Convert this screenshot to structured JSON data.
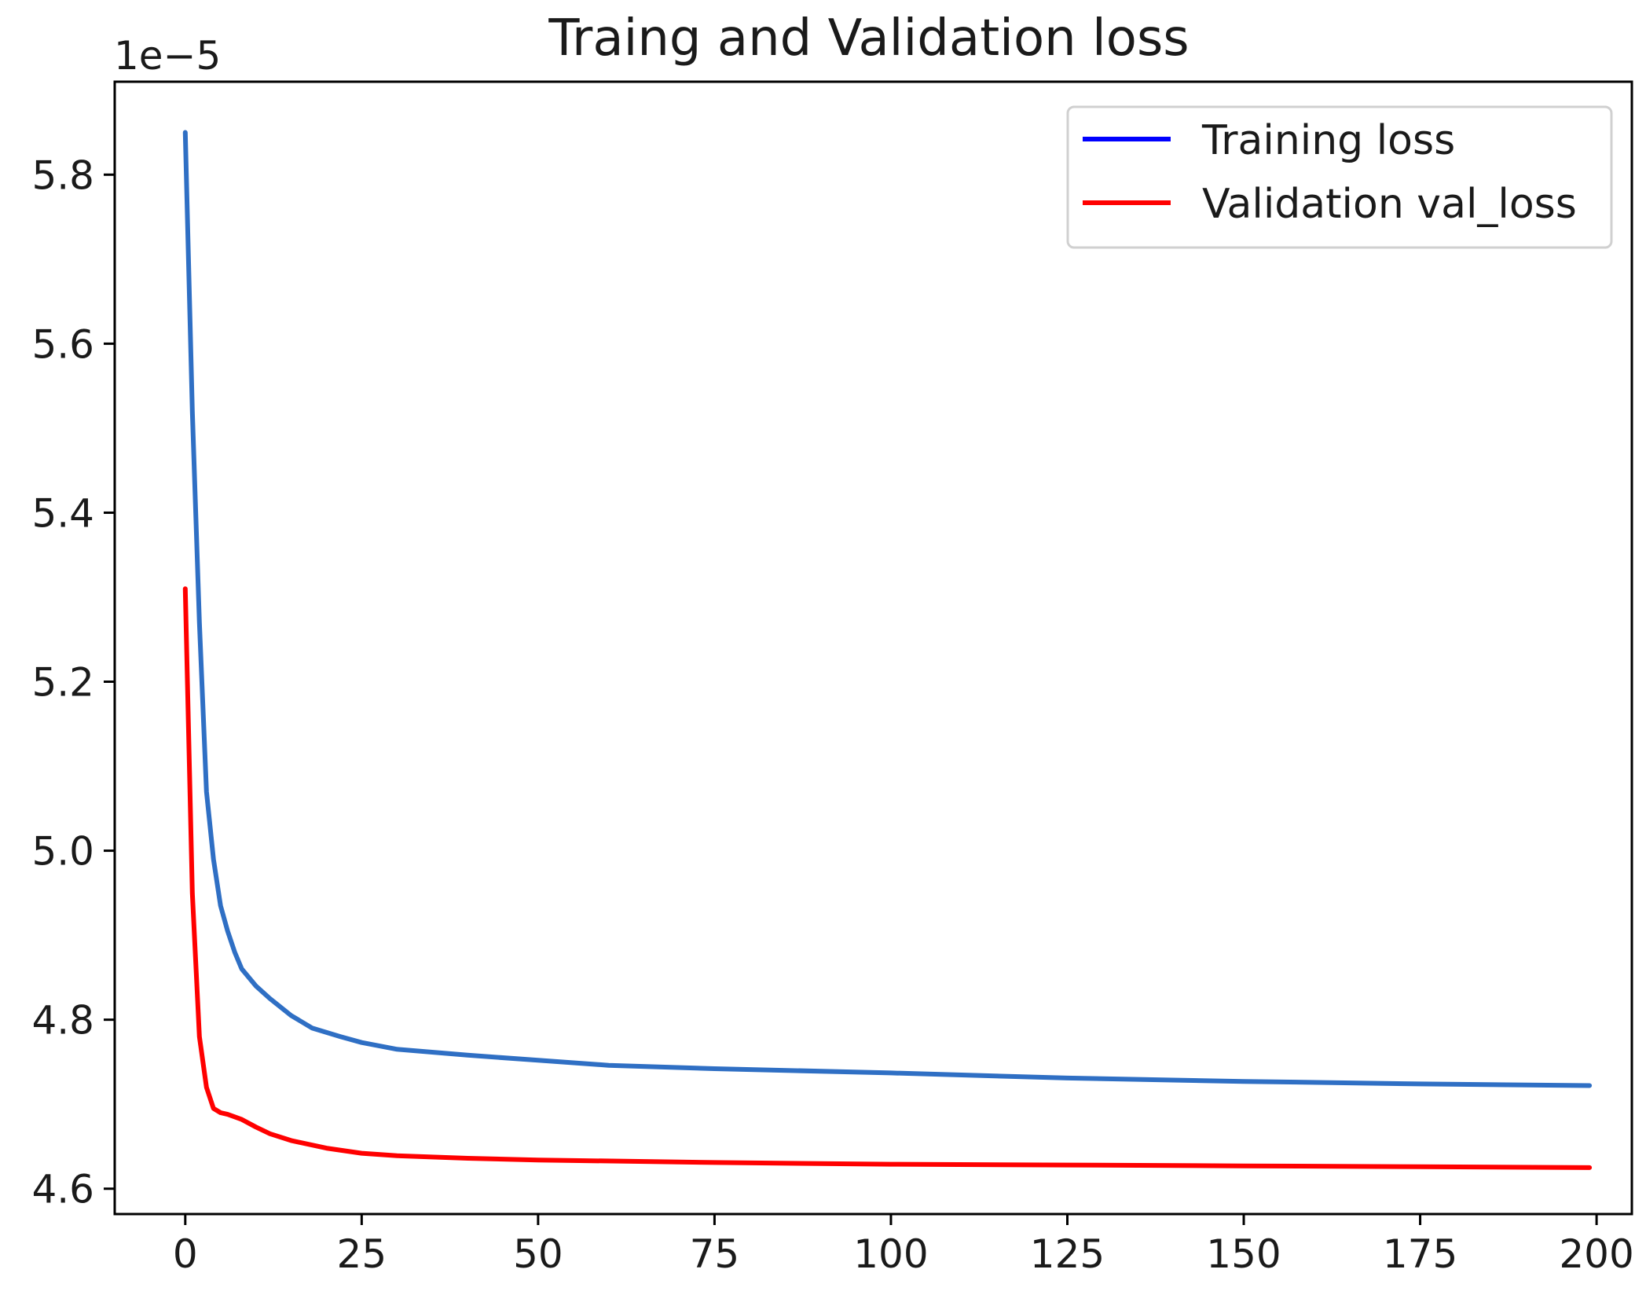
{
  "chart_data": {
    "type": "line",
    "title": "Traing and Validation loss",
    "xlabel": "",
    "ylabel": "",
    "y_offset_label": "1e−5",
    "xlim": [
      -10,
      205
    ],
    "ylim": [
      4.57,
      5.91
    ],
    "x_ticks": [
      0,
      25,
      50,
      75,
      100,
      125,
      150,
      175,
      200
    ],
    "x_tick_labels": [
      "0",
      "25",
      "50",
      "75",
      "100",
      "125",
      "150",
      "175",
      "200"
    ],
    "y_ticks": [
      4.6,
      4.8,
      5.0,
      5.2,
      5.4,
      5.6,
      5.8
    ],
    "y_tick_labels": [
      "4.6",
      "4.8",
      "5.0",
      "5.2",
      "5.4",
      "5.6",
      "5.8"
    ],
    "grid": false,
    "legend_position": "top-right",
    "legend": [
      {
        "label": "Training loss",
        "color": "#0000ff"
      },
      {
        "label": "Validation val_loss",
        "color": "#ff0000"
      }
    ],
    "series": [
      {
        "name": "Training loss",
        "color": "#2f6fc4",
        "x": [
          0,
          1,
          2,
          3,
          4,
          5,
          6,
          7,
          8,
          10,
          12,
          15,
          18,
          22,
          25,
          30,
          40,
          50,
          60,
          75,
          100,
          125,
          150,
          175,
          199
        ],
        "values": [
          5.85,
          5.52,
          5.27,
          5.07,
          4.99,
          4.935,
          4.905,
          4.88,
          4.86,
          4.84,
          4.825,
          4.805,
          4.79,
          4.78,
          4.773,
          4.765,
          4.758,
          4.752,
          4.746,
          4.742,
          4.737,
          4.731,
          4.727,
          4.724,
          4.722
        ]
      },
      {
        "name": "Validation val_loss",
        "color": "#ff0000",
        "x": [
          0,
          1,
          2,
          3,
          4,
          5,
          6,
          8,
          10,
          12,
          15,
          20,
          25,
          30,
          40,
          50,
          75,
          100,
          125,
          150,
          175,
          199
        ],
        "values": [
          5.31,
          4.95,
          4.78,
          4.72,
          4.695,
          4.69,
          4.688,
          4.682,
          4.673,
          4.665,
          4.657,
          4.648,
          4.642,
          4.639,
          4.636,
          4.634,
          4.631,
          4.629,
          4.628,
          4.627,
          4.626,
          4.625
        ]
      }
    ]
  }
}
